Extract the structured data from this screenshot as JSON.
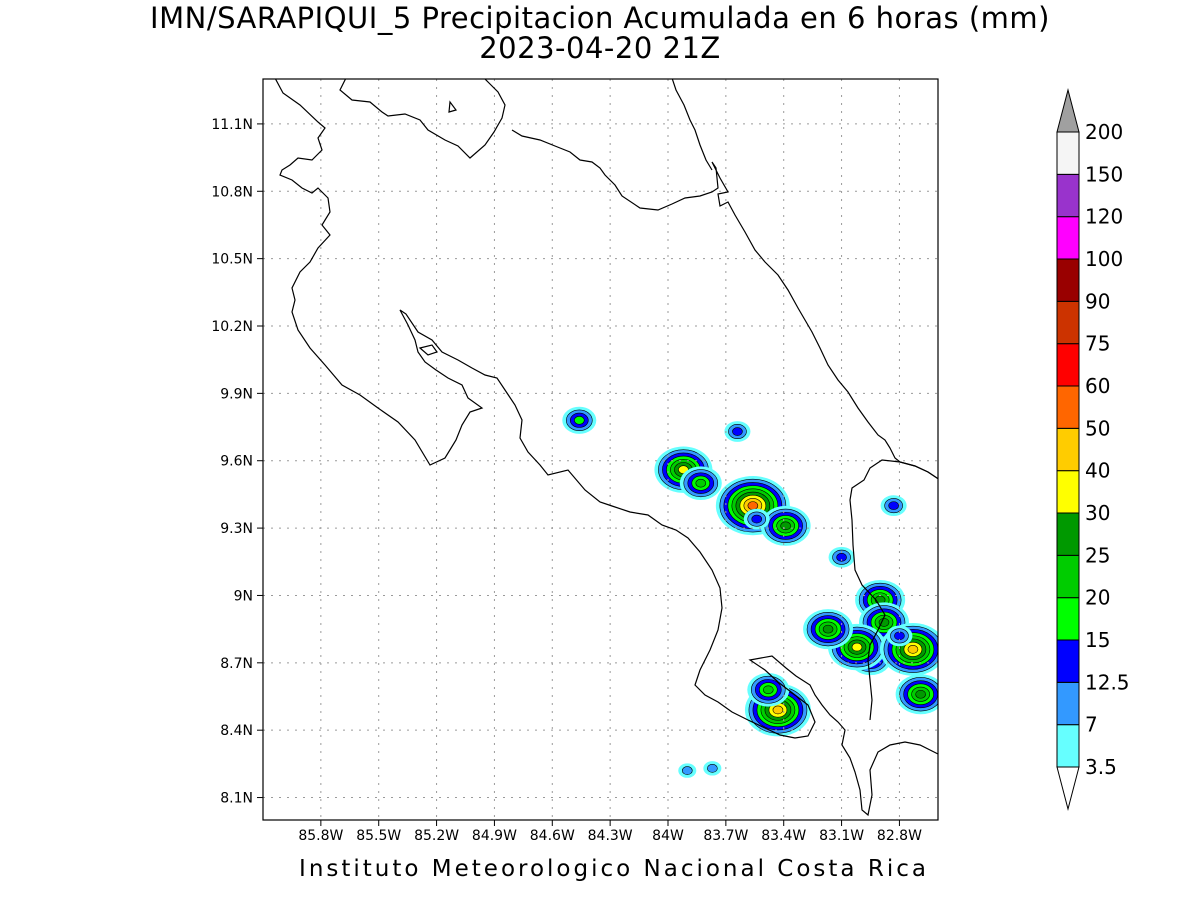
{
  "title": {
    "line1": "IMN/SARAPIQUI_5 Precipitacion Acumulada en 6 horas (mm)",
    "line2": "2023-04-20 21Z"
  },
  "footer": "Instituto Meteorologico Nacional Costa Rica",
  "map": {
    "lon_range": [
      -86.1,
      -82.6
    ],
    "lat_range": [
      8.0,
      11.3
    ],
    "grid": true,
    "lat_ticks": [
      {
        "value": 11.1,
        "label": "11.1N"
      },
      {
        "value": 10.8,
        "label": "10.8N"
      },
      {
        "value": 10.5,
        "label": "10.5N"
      },
      {
        "value": 10.2,
        "label": "10.2N"
      },
      {
        "value": 9.9,
        "label": "9.9N"
      },
      {
        "value": 9.6,
        "label": "9.6N"
      },
      {
        "value": 9.3,
        "label": "9.3N"
      },
      {
        "value": 9.0,
        "label": "9N"
      },
      {
        "value": 8.7,
        "label": "8.7N"
      },
      {
        "value": 8.4,
        "label": "8.4N"
      },
      {
        "value": 8.1,
        "label": "8.1N"
      }
    ],
    "lon_ticks": [
      {
        "value": -85.8,
        "label": "85.8W"
      },
      {
        "value": -85.5,
        "label": "85.5W"
      },
      {
        "value": -85.2,
        "label": "85.2W"
      },
      {
        "value": -84.9,
        "label": "84.9W"
      },
      {
        "value": -84.6,
        "label": "84.6W"
      },
      {
        "value": -84.3,
        "label": "84.3W"
      },
      {
        "value": -84.0,
        "label": "84W"
      },
      {
        "value": -83.7,
        "label": "83.7W"
      },
      {
        "value": -83.4,
        "label": "83.4W"
      },
      {
        "value": -83.1,
        "label": "83.1W"
      },
      {
        "value": -82.8,
        "label": "82.8W"
      }
    ],
    "precip_cells": [
      {
        "lon": -84.46,
        "lat": 9.78,
        "level": 15
      },
      {
        "lon": -83.92,
        "lat": 9.56,
        "level": 30
      },
      {
        "lon": -83.83,
        "lat": 9.5,
        "level": 20
      },
      {
        "lon": -83.64,
        "lat": 9.73,
        "level": 12.5
      },
      {
        "lon": -83.56,
        "lat": 9.4,
        "level": 50
      },
      {
        "lon": -83.39,
        "lat": 9.31,
        "level": 25
      },
      {
        "lon": -83.1,
        "lat": 9.17,
        "level": 12.5
      },
      {
        "lon": -82.9,
        "lat": 8.98,
        "level": 25
      },
      {
        "lon": -82.88,
        "lat": 8.88,
        "level": 25
      },
      {
        "lon": -82.95,
        "lat": 8.72,
        "level": 20
      },
      {
        "lon": -83.02,
        "lat": 8.77,
        "level": 30
      },
      {
        "lon": -83.17,
        "lat": 8.85,
        "level": 25
      },
      {
        "lon": -82.73,
        "lat": 8.76,
        "level": 40
      },
      {
        "lon": -82.69,
        "lat": 8.56,
        "level": 25
      },
      {
        "lon": -83.43,
        "lat": 8.49,
        "level": 40
      },
      {
        "lon": -83.48,
        "lat": 8.58,
        "level": 20
      },
      {
        "lon": -83.9,
        "lat": 8.22,
        "level": 7
      },
      {
        "lon": -83.77,
        "lat": 8.23,
        "level": 7
      },
      {
        "lon": -82.83,
        "lat": 9.4,
        "level": 12.5
      },
      {
        "lon": -83.54,
        "lat": 9.34,
        "level": 12.5
      },
      {
        "lon": -82.8,
        "lat": 8.82,
        "level": 12.5
      }
    ]
  },
  "colorbar": {
    "levels": [
      "3.5",
      "7",
      "12.5",
      "15",
      "20",
      "25",
      "30",
      "40",
      "50",
      "60",
      "75",
      "90",
      "100",
      "120",
      "150",
      "200"
    ],
    "colors": [
      "#66ffff",
      "#3399ff",
      "#0000ff",
      "#00ff00",
      "#00cc00",
      "#009900",
      "#ffff00",
      "#ffcc00",
      "#ff6600",
      "#ff0000",
      "#cc3300",
      "#990000",
      "#ff00ff",
      "#9933cc",
      "#f5f5f5"
    ],
    "over_color": "#a0a0a0",
    "under_color": "#ffffff"
  }
}
